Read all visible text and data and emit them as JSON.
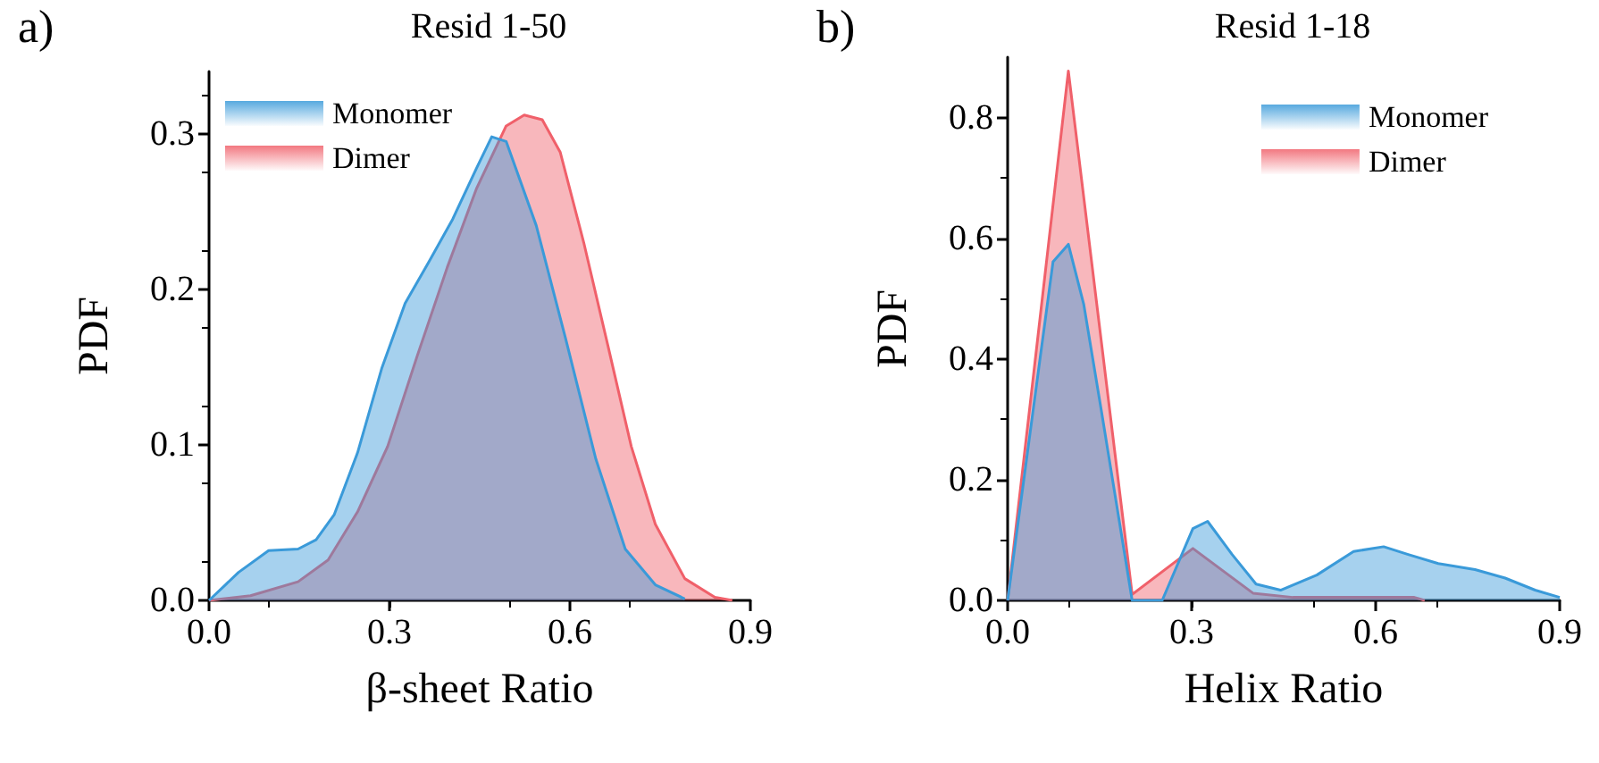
{
  "chart_data": [
    {
      "type": "area",
      "title": "Resid 1-50",
      "xlabel": "β-sheet Ratio",
      "ylabel": "PDF",
      "annotations": [
        "a)"
      ],
      "legend": "top left",
      "marker": "none",
      "grid": false,
      "xlim": [
        0,
        0.9
      ],
      "xticks": [
        {
          "value": 0,
          "label": "0.0"
        },
        0.3,
        0.6,
        0.9
      ],
      "ylim": [
        0,
        0.34
      ],
      "yticks": [
        {
          "value": 0,
          "label": "0.0"
        },
        0.1,
        0.2,
        0.3
      ],
      "series": [
        {
          "name": "Monomer",
          "color": "#3a9ad9",
          "x": [
            0,
            0.049,
            0.099,
            0.148,
            0.178,
            0.208,
            0.247,
            0.287,
            0.326,
            0.366,
            0.405,
            0.445,
            0.47,
            0.494,
            0.544,
            0.593,
            0.643,
            0.692,
            0.742,
            0.791
          ],
          "values": [
            0,
            0.018,
            0.032,
            0.033,
            0.039,
            0.055,
            0.095,
            0.149,
            0.191,
            0.218,
            0.245,
            0.278,
            0.298,
            0.295,
            0.241,
            0.168,
            0.091,
            0.033,
            0.01,
            0.001
          ]
        },
        {
          "name": "Dimer",
          "color": "#f0606a",
          "x": [
            0,
            0.069,
            0.148,
            0.198,
            0.247,
            0.297,
            0.346,
            0.396,
            0.445,
            0.494,
            0.524,
            0.554,
            0.584,
            0.623,
            0.663,
            0.702,
            0.742,
            0.791,
            0.841,
            0.87
          ],
          "values": [
            0,
            0.003,
            0.012,
            0.026,
            0.057,
            0.099,
            0.157,
            0.214,
            0.265,
            0.305,
            0.312,
            0.309,
            0.288,
            0.23,
            0.164,
            0.099,
            0.049,
            0.014,
            0.002,
            0
          ]
        }
      ]
    },
    {
      "type": "area",
      "title": "Resid 1-18",
      "xlabel": "Helix Ratio",
      "ylabel": "PDF",
      "annotations": [
        "b)"
      ],
      "legend": "top right",
      "marker": "none",
      "grid": false,
      "xlim": [
        0,
        0.9
      ],
      "xticks": [
        {
          "value": 0,
          "label": "0.0"
        },
        0.3,
        0.6,
        0.9
      ],
      "ylim": [
        0,
        0.9
      ],
      "yticks": [
        {
          "value": 0,
          "label": "0.0"
        },
        0.2,
        0.4,
        0.6,
        0.8
      ],
      "series": [
        {
          "name": "Monomer",
          "color": "#3a9ad9",
          "x": [
            0,
            0.074,
            0.099,
            0.124,
            0.153,
            0.203,
            0.252,
            0.302,
            0.326,
            0.366,
            0.405,
            0.445,
            0.504,
            0.564,
            0.613,
            0.653,
            0.702,
            0.762,
            0.811,
            0.86,
            0.9
          ],
          "values": [
            0,
            0.561,
            0.59,
            0.491,
            0.313,
            0,
            0,
            0.119,
            0.131,
            0.076,
            0.027,
            0.017,
            0.042,
            0.081,
            0.089,
            0.076,
            0.061,
            0.051,
            0.037,
            0.017,
            0.005
          ]
        },
        {
          "name": "Dimer",
          "color": "#f0606a",
          "x": [
            0,
            0.099,
            0.203,
            0.302,
            0.4,
            0.465,
            0.663,
            0.68
          ],
          "values": [
            0,
            0.877,
            0.01,
            0.086,
            0.012,
            0.005,
            0.005,
            0
          ]
        }
      ]
    }
  ]
}
